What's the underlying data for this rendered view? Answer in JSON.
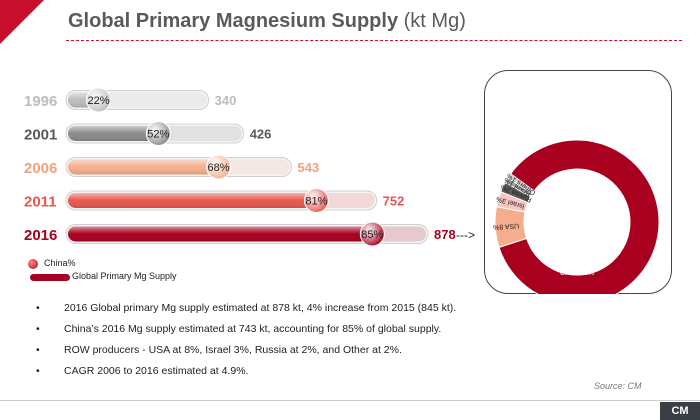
{
  "title": {
    "main": "Global Primary Magnesium Supply",
    "unit": "(kt Mg)"
  },
  "chart_data": [
    {
      "type": "bar",
      "orientation": "horizontal",
      "categories": [
        "1996",
        "2001",
        "2006",
        "2011",
        "2016"
      ],
      "values": [
        340,
        426,
        543,
        752,
        878
      ],
      "china_share_labels": [
        "22%",
        "52%",
        "68%",
        "81%",
        "85%"
      ],
      "china_share": [
        22,
        52,
        68,
        81,
        85
      ],
      "value_labels": [
        "340",
        "426",
        "543",
        "752",
        "878"
      ],
      "colors": [
        "#bdbdbd",
        "#8a8a8a",
        "#f6ad8c",
        "#e9564f",
        "#a8001e"
      ],
      "label_colors": [
        "#bdbdbd",
        "#5a5a5a",
        "#f4a07a",
        "#e9564f",
        "#a8001e"
      ],
      "legend": [
        "China%",
        "Global Primary Mg Supply"
      ],
      "arrow": "--->"
    },
    {
      "type": "pie",
      "style": "donut",
      "labels": [
        "China 85%",
        "USA 8%",
        "Israel 3%",
        "Russia 2%",
        "Brazil 1%",
        "Others 1%"
      ],
      "values": [
        85,
        8,
        3,
        2,
        1,
        1
      ],
      "colors": [
        "#a8001e",
        "#f6ad8c",
        "#f7c4c4",
        "#5a5a5a",
        "#9e9e9e",
        "#cfcfcf"
      ]
    }
  ],
  "bullets": [
    "2016 Global primary Mg supply estimated at 878 kt, 4% increase from 2015 (845 kt).",
    "China’s 2016 Mg supply estimated at 743 kt, accounting for 85% of global supply.",
    "ROW producers - USA at 8%, Israel 3%, Russia at 2%, and Other at 2%.",
    "CAGR 2006 to 2016 estimated at 4.9%."
  ],
  "bullet_symbol": "•",
  "source": "Source: CM",
  "logo": "CM"
}
